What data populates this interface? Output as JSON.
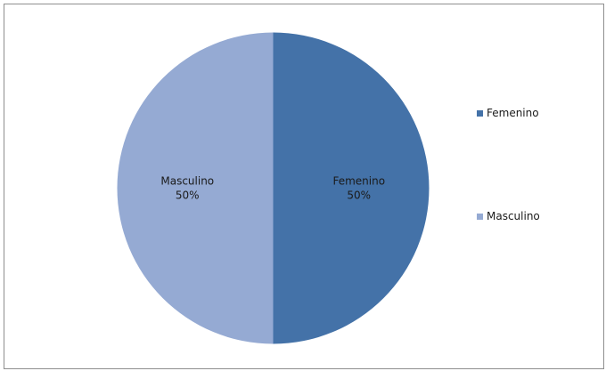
{
  "chart_data": {
    "type": "pie",
    "title": "",
    "categories": [
      "Femenino",
      "Masculino"
    ],
    "values": [
      50,
      50
    ],
    "unit": "%",
    "data_labels": [
      {
        "category": "Femenino",
        "value_text": "50%"
      },
      {
        "category": "Masculino",
        "value_text": "50%"
      }
    ],
    "colors": [
      "#4472a8",
      "#95aad3"
    ],
    "start_angle_from_top_deg": 0,
    "direction": "clockwise",
    "legend": {
      "position": "right",
      "entries": [
        "Femenino",
        "Masculino"
      ]
    }
  }
}
